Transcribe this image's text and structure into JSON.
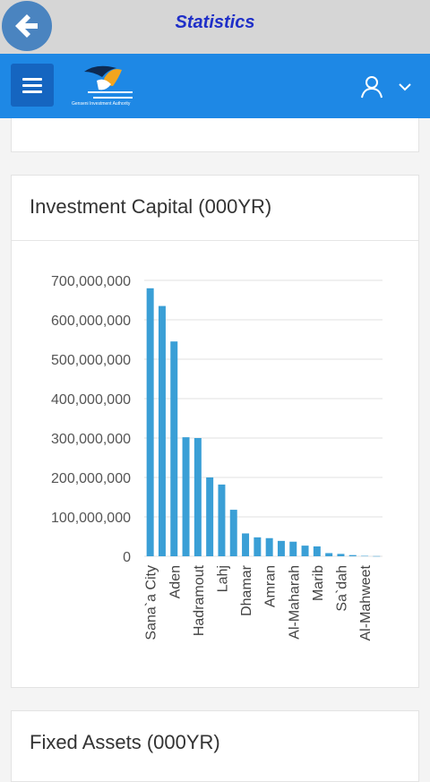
{
  "header": {
    "title": "Statistics",
    "back_icon": "back-arrow-icon",
    "colors": {
      "bar": "#d6d6d6",
      "title": "#1f2fc8",
      "back": "#4a84c0"
    }
  },
  "navbar": {
    "color": "#1e88e5",
    "menu_icon": "hamburger-icon",
    "logo_text": "Genseni Investment Authority",
    "user_icon": "user-icon",
    "dropdown_icon": "chevron-down-icon"
  },
  "cards": {
    "investment_title": "Investment Capital (000YR)",
    "fixed_assets_title": "Fixed Assets (000YR)"
  },
  "chart_data": {
    "type": "bar",
    "title": "Investment Capital (000YR)",
    "bar_color": "#3a9fd6",
    "grid": true,
    "ylim": [
      0,
      700000000
    ],
    "yticks": [
      "0",
      "100,000,000",
      "200,000,000",
      "300,000,000",
      "400,000,000",
      "500,000,000",
      "600,000,000",
      "700,000,000"
    ],
    "ytick_values": [
      0,
      100000000,
      200000000,
      300000000,
      400000000,
      500000000,
      600000000,
      700000000
    ],
    "categories": [
      "Sana`a City",
      "",
      "Aden",
      "",
      "Hadramout",
      "",
      "Lahj",
      "",
      "Dhamar",
      "",
      "Amran",
      "",
      "Al-Maharah",
      "",
      "Marib",
      "",
      "Sa`dah",
      "",
      "Al-Mahweet",
      ""
    ],
    "values": [
      680000000,
      635000000,
      545000000,
      302000000,
      300000000,
      200000000,
      182000000,
      118000000,
      58000000,
      48000000,
      46000000,
      39000000,
      37000000,
      27000000,
      25000000,
      8000000,
      6000000,
      3000000,
      1000000,
      500000
    ]
  }
}
